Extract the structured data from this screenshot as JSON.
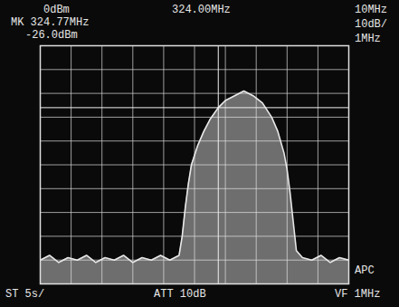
{
  "chart_data": {
    "type": "line",
    "annotations": [
      "0dBm",
      "324.00MHz",
      "10MHz",
      "MK 324.77MHz",
      "10dB/",
      "-26.0dBm",
      "1MHz",
      "ST 5s/",
      "ATT 10dB",
      "VF 1MHz",
      "APC"
    ],
    "x": [
      319,
      319.3,
      319.6,
      319.9,
      320.2,
      320.5,
      320.8,
      321.1,
      321.4,
      321.7,
      322.0,
      322.3,
      322.6,
      322.9,
      323.2,
      323.5,
      323.6,
      323.7,
      323.8,
      323.9,
      324.1,
      324.3,
      324.5,
      324.77,
      325.0,
      325.3,
      325.6,
      325.9,
      326.2,
      326.5,
      326.7,
      326.9,
      327.0,
      327.1,
      327.2,
      327.3,
      327.5,
      327.8,
      328.1,
      328.4,
      328.7,
      329
    ],
    "values": [
      -90,
      -88,
      -91,
      -89,
      -90,
      -88,
      -91,
      -89,
      -90,
      -88,
      -91,
      -89,
      -90,
      -88,
      -90,
      -88,
      -80,
      -68,
      -58,
      -50,
      -42,
      -36,
      -31,
      -26,
      -23,
      -21,
      -19,
      -21,
      -24,
      -30,
      -36,
      -45,
      -52,
      -62,
      -74,
      -86,
      -89,
      -90,
      -88,
      -91,
      -89,
      -90
    ],
    "cursor": {
      "x": 324.77,
      "y": -26.0
    },
    "color": "#e8e8e8",
    "xlim": [
      319,
      329
    ],
    "ylim": [
      -100,
      0
    ],
    "xticks": [
      319,
      320,
      321,
      322,
      323,
      324,
      325,
      326,
      327,
      328,
      329
    ],
    "yticks": [
      -100,
      -90,
      -80,
      -70,
      -60,
      -50,
      -40,
      -30,
      -20,
      -10,
      0
    ],
    "grid": true,
    "tick_labels": false
  }
}
